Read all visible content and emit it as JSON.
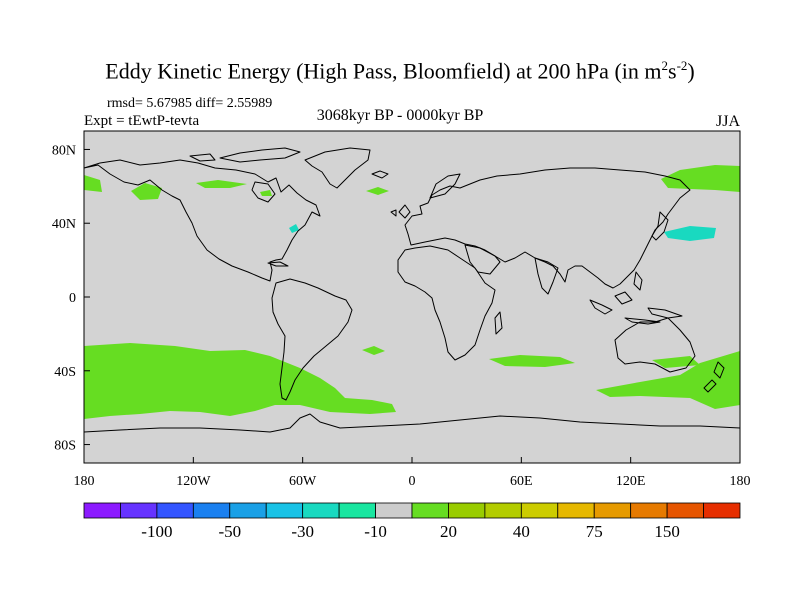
{
  "title": {
    "main": "Eddy Kinetic Energy (High Pass, Bloomfield) at 200 hPa (in m",
    "sup1": "2",
    "mid": "s",
    "sup2": "-2",
    "close": ")"
  },
  "stats": "rmsd= 5.67985 diff= 2.55989",
  "expt": "Expt = tEwtP-tevta",
  "period": "3068kyr BP - 0000kyr BP",
  "season": "JJA",
  "map": {
    "background_color": "#d3d3d3",
    "lat_range": [
      -90,
      90
    ],
    "lon_range": [
      -180,
      180
    ],
    "y_ticks": [
      {
        "lat": 80,
        "label": "80N"
      },
      {
        "lat": 40,
        "label": "40N"
      },
      {
        "lat": 0,
        "label": "0"
      },
      {
        "lat": -40,
        "label": "40S"
      },
      {
        "lat": -80,
        "label": "80S"
      }
    ],
    "x_ticks": [
      {
        "lon": -180,
        "label": "180"
      },
      {
        "lon": -120,
        "label": "120W"
      },
      {
        "lon": -60,
        "label": "60W"
      },
      {
        "lon": 0,
        "label": "0"
      },
      {
        "lon": 60,
        "label": "60E"
      },
      {
        "lon": 120,
        "label": "120E"
      },
      {
        "lon": 180,
        "label": "180"
      }
    ]
  },
  "colorbar": {
    "colors": [
      "#8c1aff",
      "#6633ff",
      "#3355ff",
      "#1a80f0",
      "#1aa0e6",
      "#19c2e6",
      "#19d9c0",
      "#19e6a0",
      "#cccccc",
      "#66dd22",
      "#99cc00",
      "#b3cc00",
      "#cccc00",
      "#e6b800",
      "#e69a00",
      "#e67a00",
      "#e65500",
      "#e62e00"
    ],
    "labels": [
      {
        "after": 1,
        "text": "-100"
      },
      {
        "after": 3,
        "text": "-50"
      },
      {
        "after": 5,
        "text": "-30"
      },
      {
        "after": 7,
        "text": "-10"
      },
      {
        "after": 9,
        "text": "20"
      },
      {
        "after": 11,
        "text": "40"
      },
      {
        "after": 13,
        "text": "75"
      },
      {
        "after": 15,
        "text": "150"
      }
    ]
  }
}
